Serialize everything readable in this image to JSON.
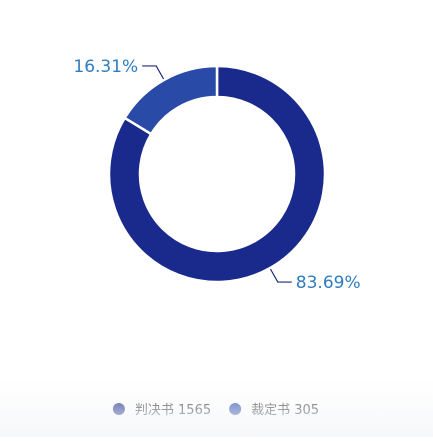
{
  "chart_data": {
    "type": "pie",
    "donut": true,
    "categories": [
      "判决书",
      "裁定书"
    ],
    "values": [
      1565,
      305
    ],
    "percent_labels": [
      "83.69%",
      "16.31%"
    ],
    "legend": {
      "position": "bottom",
      "entries": [
        {
          "name": "判决书",
          "value": "1565"
        },
        {
          "name": "裁定书",
          "value": "305"
        }
      ]
    },
    "colors": [
      "#1a2a8c",
      "#2a4aa8"
    ],
    "label_color": "#2f7cc0"
  }
}
